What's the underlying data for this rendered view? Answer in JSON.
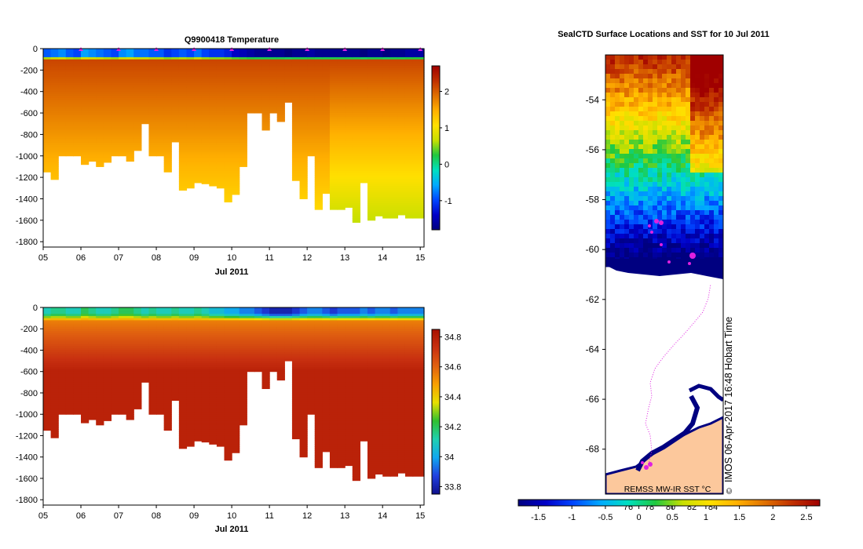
{
  "colors": {
    "temp_scale": [
      "#000080",
      "#0000c8",
      "#0046ff",
      "#00aaff",
      "#00e0c0",
      "#20c840",
      "#c8e000",
      "#ffe000",
      "#ffb000",
      "#e07000",
      "#c03000",
      "#a00000"
    ],
    "sal_scale": [
      "#10108c",
      "#2040e0",
      "#10a8f0",
      "#20d0b0",
      "#30c030",
      "#e8e000",
      "#f8a000",
      "#e06010",
      "#c83010",
      "#a81000"
    ],
    "markers": "#e020e0",
    "land": "#fcc89c",
    "track": "#e020e0"
  },
  "chart_data": [
    {
      "type": "heatmap",
      "title": "Q9900418  Temperature",
      "xlabel": "Jul 2011",
      "ylabel": "",
      "xlim": [
        5,
        15.1
      ],
      "ylim": [
        -1850,
        0
      ],
      "x_ticks": [
        "05",
        "06",
        "07",
        "08",
        "09",
        "10",
        "11",
        "12",
        "13",
        "14",
        "15"
      ],
      "y_ticks": [
        "0",
        "-200",
        "-400",
        "-600",
        "-800",
        "-1000",
        "-1200",
        "-1400",
        "-1600",
        "-1800"
      ],
      "colorbar": {
        "min": -1.8,
        "max": 2.7,
        "ticks": [
          "-1",
          "0",
          "1",
          "2"
        ]
      },
      "profile_days": [
        5.0,
        5.2,
        5.4,
        5.6,
        5.8,
        6.0,
        6.2,
        6.4,
        6.6,
        6.8,
        7.0,
        7.2,
        7.4,
        7.6,
        7.8,
        8.0,
        8.2,
        8.4,
        8.6,
        8.8,
        9.0,
        9.2,
        9.4,
        9.6,
        9.8,
        10.0,
        10.2,
        10.4,
        10.6,
        10.8,
        11.0,
        11.2,
        11.4,
        11.6,
        11.8,
        12.0,
        12.2,
        12.4,
        12.6,
        12.8,
        13.0,
        13.2,
        13.4,
        13.6,
        13.8,
        14.0,
        14.2,
        14.4,
        14.6,
        14.8
      ],
      "profile_max_depth": [
        1150,
        1220,
        1000,
        1000,
        1000,
        1080,
        1050,
        1100,
        1060,
        1000,
        1000,
        1050,
        950,
        700,
        1000,
        1000,
        1150,
        870,
        1320,
        1300,
        1250,
        1260,
        1280,
        1300,
        1430,
        1360,
        1100,
        600,
        600,
        760,
        600,
        680,
        500,
        1230,
        1400,
        1000,
        1500,
        1350,
        1500,
        1500,
        1480,
        1620,
        1250,
        1600,
        1560,
        1580,
        1580,
        1550,
        1580,
        1580
      ],
      "surface_temp": [
        -0.9,
        -0.8,
        -0.7,
        -0.9,
        -1.0,
        -0.6,
        -0.7,
        -0.8,
        -0.9,
        -1.0,
        -0.7,
        -0.6,
        -0.8,
        -0.8,
        -0.9,
        -0.9,
        -1.1,
        -1.0,
        -0.9,
        -1.0,
        -0.8,
        -1.0,
        -1.1,
        -1.1,
        -1.2,
        -1.4,
        -1.5,
        -1.6,
        -1.7,
        -1.7,
        -1.7,
        -1.7,
        -1.8,
        -1.7,
        -1.7,
        -1.6,
        -1.7,
        -1.7,
        -1.7,
        -1.7,
        -1.7,
        -1.7,
        -1.8,
        -1.7,
        -1.7,
        -1.8,
        -1.7,
        -1.7,
        -1.6,
        -1.6
      ],
      "marker_days": [
        6.0,
        7.0,
        8.0,
        9.0,
        10.0,
        11.0,
        12.0,
        13.0,
        14.0,
        15.0
      ]
    },
    {
      "type": "heatmap",
      "title": "",
      "xlabel": "Jul 2011",
      "ylabel": "",
      "xlim": [
        5,
        15.1
      ],
      "ylim": [
        -1850,
        0
      ],
      "x_ticks": [
        "05",
        "06",
        "07",
        "08",
        "09",
        "10",
        "11",
        "12",
        "13",
        "14",
        "15"
      ],
      "y_ticks": [
        "0",
        "-200",
        "-400",
        "-600",
        "-800",
        "-1000",
        "-1200",
        "-1400",
        "-1600",
        "-1800"
      ],
      "colorbar": {
        "min": 33.75,
        "max": 34.85,
        "ticks": [
          "33.8",
          "34",
          "34.2",
          "34.4",
          "34.6",
          "34.8"
        ]
      },
      "surface_sal": [
        34.1,
        34.15,
        34.15,
        34.1,
        34.1,
        34.2,
        34.15,
        34.1,
        34.1,
        34.15,
        34.2,
        34.2,
        34.15,
        34.1,
        34.15,
        34.1,
        34.1,
        34.15,
        34.1,
        34.1,
        34.15,
        34.1,
        34.05,
        34.05,
        34.0,
        34.0,
        33.95,
        33.95,
        33.9,
        33.85,
        33.8,
        33.8,
        33.8,
        33.85,
        33.9,
        33.95,
        33.95,
        33.9,
        33.85,
        33.9,
        33.9,
        33.9,
        33.95,
        33.9,
        33.95,
        33.95,
        33.9,
        33.95,
        33.95,
        33.95
      ]
    },
    {
      "type": "heatmap",
      "title": "SealCTD Surface Locations and SST for 10 Jul 2011",
      "xlabel": "",
      "ylabel": "",
      "lon_ticks": [
        "76",
        "78",
        "80",
        "82",
        "84"
      ],
      "lat_ticks": [
        "-54",
        "-56",
        "-58",
        "-60",
        "-62",
        "-64",
        "-66",
        "-68"
      ],
      "lat_range": [
        -69.8,
        -52.2
      ],
      "colorbar": {
        "min": -1.8,
        "max": 2.7,
        "ticks": [
          "-1.5",
          "-1",
          "-0.5",
          "0",
          "0.5",
          "1",
          "1.5",
          "2",
          "2.5"
        ]
      },
      "source_label": "REMSS MW-IR SST °C",
      "credit": "IMOS 06-Apr-2017 16:48 Hobart Time",
      "copyright": "©"
    }
  ]
}
